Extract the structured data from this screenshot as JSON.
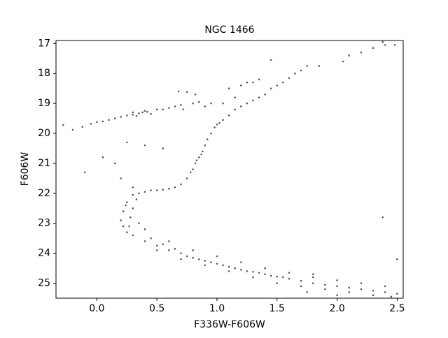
{
  "chart_data": {
    "type": "scatter",
    "title": "NGC 1466",
    "x_label": "F336W-F606W",
    "y_label": "F606W",
    "color": "#000000",
    "xlim": [
      -0.34,
      2.55
    ],
    "ylim": [
      25.5,
      16.9
    ],
    "xticks": [
      {
        "value": 0,
        "label": "0.0"
      },
      0.5,
      {
        "value": 1,
        "label": "1.0"
      },
      1.5,
      {
        "value": 2,
        "label": "2.0"
      },
      2.5
    ],
    "yticks": [
      17,
      18,
      19,
      20,
      21,
      22,
      23,
      24,
      25
    ],
    "x": [
      -0.28,
      -0.2,
      -0.12,
      -0.05,
      0.0,
      0.05,
      0.1,
      0.15,
      0.2,
      0.25,
      0.3,
      0.35,
      0.38,
      0.42,
      0.45,
      0.5,
      0.55,
      0.6,
      0.65,
      0.7,
      0.72,
      0.3,
      0.4,
      0.33,
      0.8,
      0.85,
      0.9,
      0.95,
      0.68,
      0.75,
      0.82,
      0.7,
      0.75,
      0.8,
      0.82,
      0.85,
      0.88,
      0.9,
      0.92,
      0.95,
      0.98,
      1.0,
      1.05,
      1.1,
      1.15,
      1.2,
      1.25,
      1.3,
      1.35,
      1.4,
      1.45,
      1.5,
      1.55,
      1.6,
      1.65,
      1.7,
      1.75,
      1.85,
      2.05,
      2.1,
      2.2,
      2.3,
      2.4,
      2.48,
      2.38,
      1.45,
      0.78,
      0.87,
      0.83,
      1.02,
      1.2,
      1.25,
      1.3,
      1.35,
      1.1,
      1.15,
      1.05,
      0.3,
      0.35,
      0.4,
      0.45,
      0.5,
      0.55,
      0.6,
      0.65,
      0.25,
      0.22,
      0.2,
      0.22,
      0.25,
      0.3,
      0.28,
      0.3,
      0.35,
      0.27,
      0.24,
      0.33,
      0.4,
      0.4,
      0.5,
      0.6,
      0.7,
      0.8,
      0.9,
      1.0,
      1.1,
      1.2,
      1.3,
      1.4,
      1.5,
      1.6,
      1.7,
      1.8,
      1.9,
      2.0,
      2.1,
      2.2,
      2.3,
      2.4,
      2.5,
      0.45,
      0.55,
      0.65,
      0.75,
      0.85,
      0.95,
      1.05,
      1.15,
      1.25,
      1.35,
      1.45,
      1.55,
      0.5,
      0.7,
      0.9,
      1.1,
      1.3,
      1.5,
      1.7,
      1.9,
      2.1,
      2.3,
      0.6,
      0.8,
      1.0,
      1.2,
      1.4,
      1.6,
      1.8,
      2.0,
      2.2,
      2.4,
      2.5,
      2.38,
      1.8,
      2.45,
      2.0,
      1.75,
      -0.1,
      0.05,
      0.15,
      0.2,
      0.25,
      0.4,
      0.3,
      0.55
    ],
    "values": [
      19.72,
      19.88,
      19.78,
      19.68,
      19.62,
      19.6,
      19.55,
      19.5,
      19.45,
      19.4,
      19.38,
      19.33,
      19.3,
      19.28,
      19.35,
      19.2,
      19.2,
      19.15,
      19.1,
      19.05,
      19.2,
      19.3,
      19.25,
      19.42,
      19.0,
      18.95,
      19.1,
      19.0,
      18.6,
      18.62,
      18.7,
      21.7,
      21.5,
      21.2,
      21.0,
      20.8,
      20.6,
      20.4,
      20.2,
      20.0,
      19.8,
      19.7,
      19.55,
      19.4,
      19.2,
      19.1,
      19.0,
      18.9,
      18.8,
      18.7,
      18.5,
      18.4,
      18.3,
      18.15,
      18.0,
      17.9,
      17.75,
      17.75,
      17.6,
      17.4,
      17.3,
      17.15,
      17.05,
      17.05,
      16.95,
      17.55,
      21.3,
      20.7,
      20.9,
      19.65,
      18.4,
      18.3,
      18.3,
      18.2,
      18.5,
      18.8,
      19.0,
      22.05,
      22.0,
      21.95,
      21.9,
      21.9,
      21.88,
      21.85,
      21.8,
      22.3,
      22.6,
      22.9,
      23.1,
      23.3,
      23.4,
      22.8,
      22.5,
      23.0,
      23.1,
      22.4,
      22.2,
      23.2,
      23.6,
      23.75,
      23.9,
      24.0,
      24.15,
      24.25,
      24.35,
      24.45,
      24.55,
      24.62,
      24.7,
      24.78,
      24.85,
      24.92,
      25.0,
      25.05,
      25.1,
      25.15,
      25.2,
      25.25,
      25.3,
      25.35,
      23.5,
      23.7,
      23.85,
      24.1,
      24.2,
      24.3,
      24.4,
      24.5,
      24.6,
      24.65,
      24.75,
      24.8,
      23.9,
      24.2,
      24.4,
      24.6,
      24.8,
      25.0,
      25.1,
      25.2,
      25.3,
      25.4,
      23.6,
      23.9,
      24.1,
      24.3,
      24.5,
      24.65,
      24.8,
      24.9,
      25.0,
      25.1,
      24.2,
      22.8,
      24.7,
      25.45,
      25.4,
      25.3,
      21.3,
      20.8,
      21.0,
      21.5,
      20.3,
      20.4,
      21.8,
      20.5
    ]
  }
}
